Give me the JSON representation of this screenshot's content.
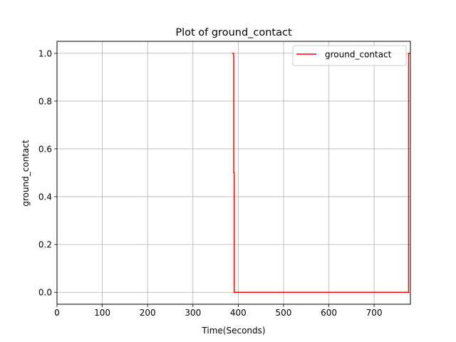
{
  "chart_data": {
    "type": "line",
    "title": "Plot of ground_contact",
    "xlabel": "Time(Seconds)",
    "ylabel": "ground_contact",
    "xlim": [
      0,
      780
    ],
    "ylim": [
      -0.05,
      1.05
    ],
    "xticks": [
      0,
      100,
      200,
      300,
      400,
      500,
      600,
      700
    ],
    "yticks": [
      0.0,
      0.2,
      0.4,
      0.6,
      0.8,
      1.0
    ],
    "xtick_labels": [
      "0",
      "100",
      "200",
      "300",
      "400",
      "500",
      "600",
      "700"
    ],
    "ytick_labels": [
      "0.0",
      "0.2",
      "0.4",
      "0.6",
      "0.8",
      "1.0"
    ],
    "grid": true,
    "legend": {
      "placement": "upper right"
    },
    "series": [
      {
        "name": "ground_contact",
        "color": "#ff0000",
        "x": [
          387,
          390,
          390,
          391,
          391,
          776,
          776,
          780
        ],
        "y": [
          1,
          1,
          0.5,
          0.5,
          0,
          0,
          1,
          1
        ]
      }
    ]
  }
}
